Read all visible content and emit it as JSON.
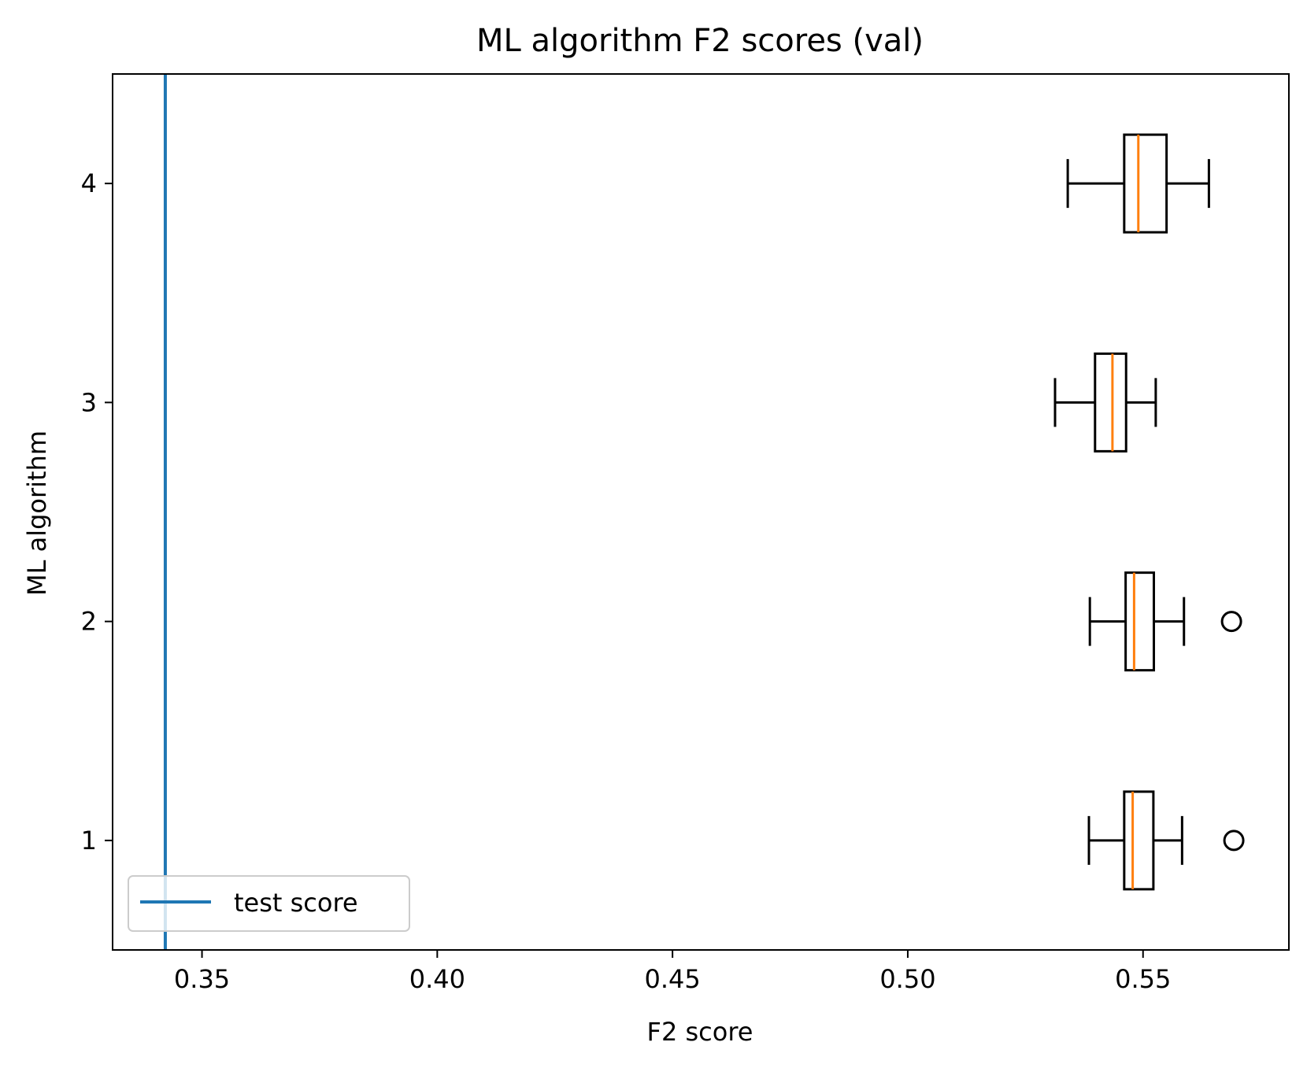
{
  "chart_data": {
    "type": "boxplot",
    "orientation": "horizontal",
    "title": "ML algorithm F2 scores (val)",
    "xlabel": "F2 score",
    "ylabel": "ML algorithm",
    "xlim": [
      0.331,
      0.581
    ],
    "ylim": [
      0.5,
      4.5
    ],
    "xticks": [
      0.35,
      0.4,
      0.45,
      0.5,
      0.55
    ],
    "xtick_labels": [
      "0.35",
      "0.40",
      "0.45",
      "0.50",
      "0.55"
    ],
    "yticks": [
      1,
      2,
      3,
      4
    ],
    "ytick_labels": [
      "1",
      "2",
      "3",
      "4"
    ],
    "grid": false,
    "boxes": [
      {
        "position": 1,
        "whisker_low": 0.5385,
        "q1": 0.546,
        "median": 0.5478,
        "q3": 0.5522,
        "whisker_high": 0.5583,
        "outliers": [
          0.5693
        ]
      },
      {
        "position": 2,
        "whisker_low": 0.5387,
        "q1": 0.5463,
        "median": 0.5481,
        "q3": 0.5523,
        "whisker_high": 0.5587,
        "outliers": [
          0.5688
        ]
      },
      {
        "position": 3,
        "whisker_low": 0.5313,
        "q1": 0.5398,
        "median": 0.5435,
        "q3": 0.5464,
        "whisker_high": 0.5527,
        "outliers": []
      },
      {
        "position": 4,
        "whisker_low": 0.534,
        "q1": 0.546,
        "median": 0.549,
        "q3": 0.555,
        "whisker_high": 0.564,
        "outliers": []
      }
    ],
    "reference_line": {
      "name": "test score",
      "x": 0.3422,
      "color": "#1f77b4"
    },
    "legend": {
      "position": "lower-left",
      "entries": [
        "test score"
      ]
    },
    "colors": {
      "box": "#000000",
      "median": "#ff7f0e",
      "reference": "#1f77b4"
    }
  }
}
